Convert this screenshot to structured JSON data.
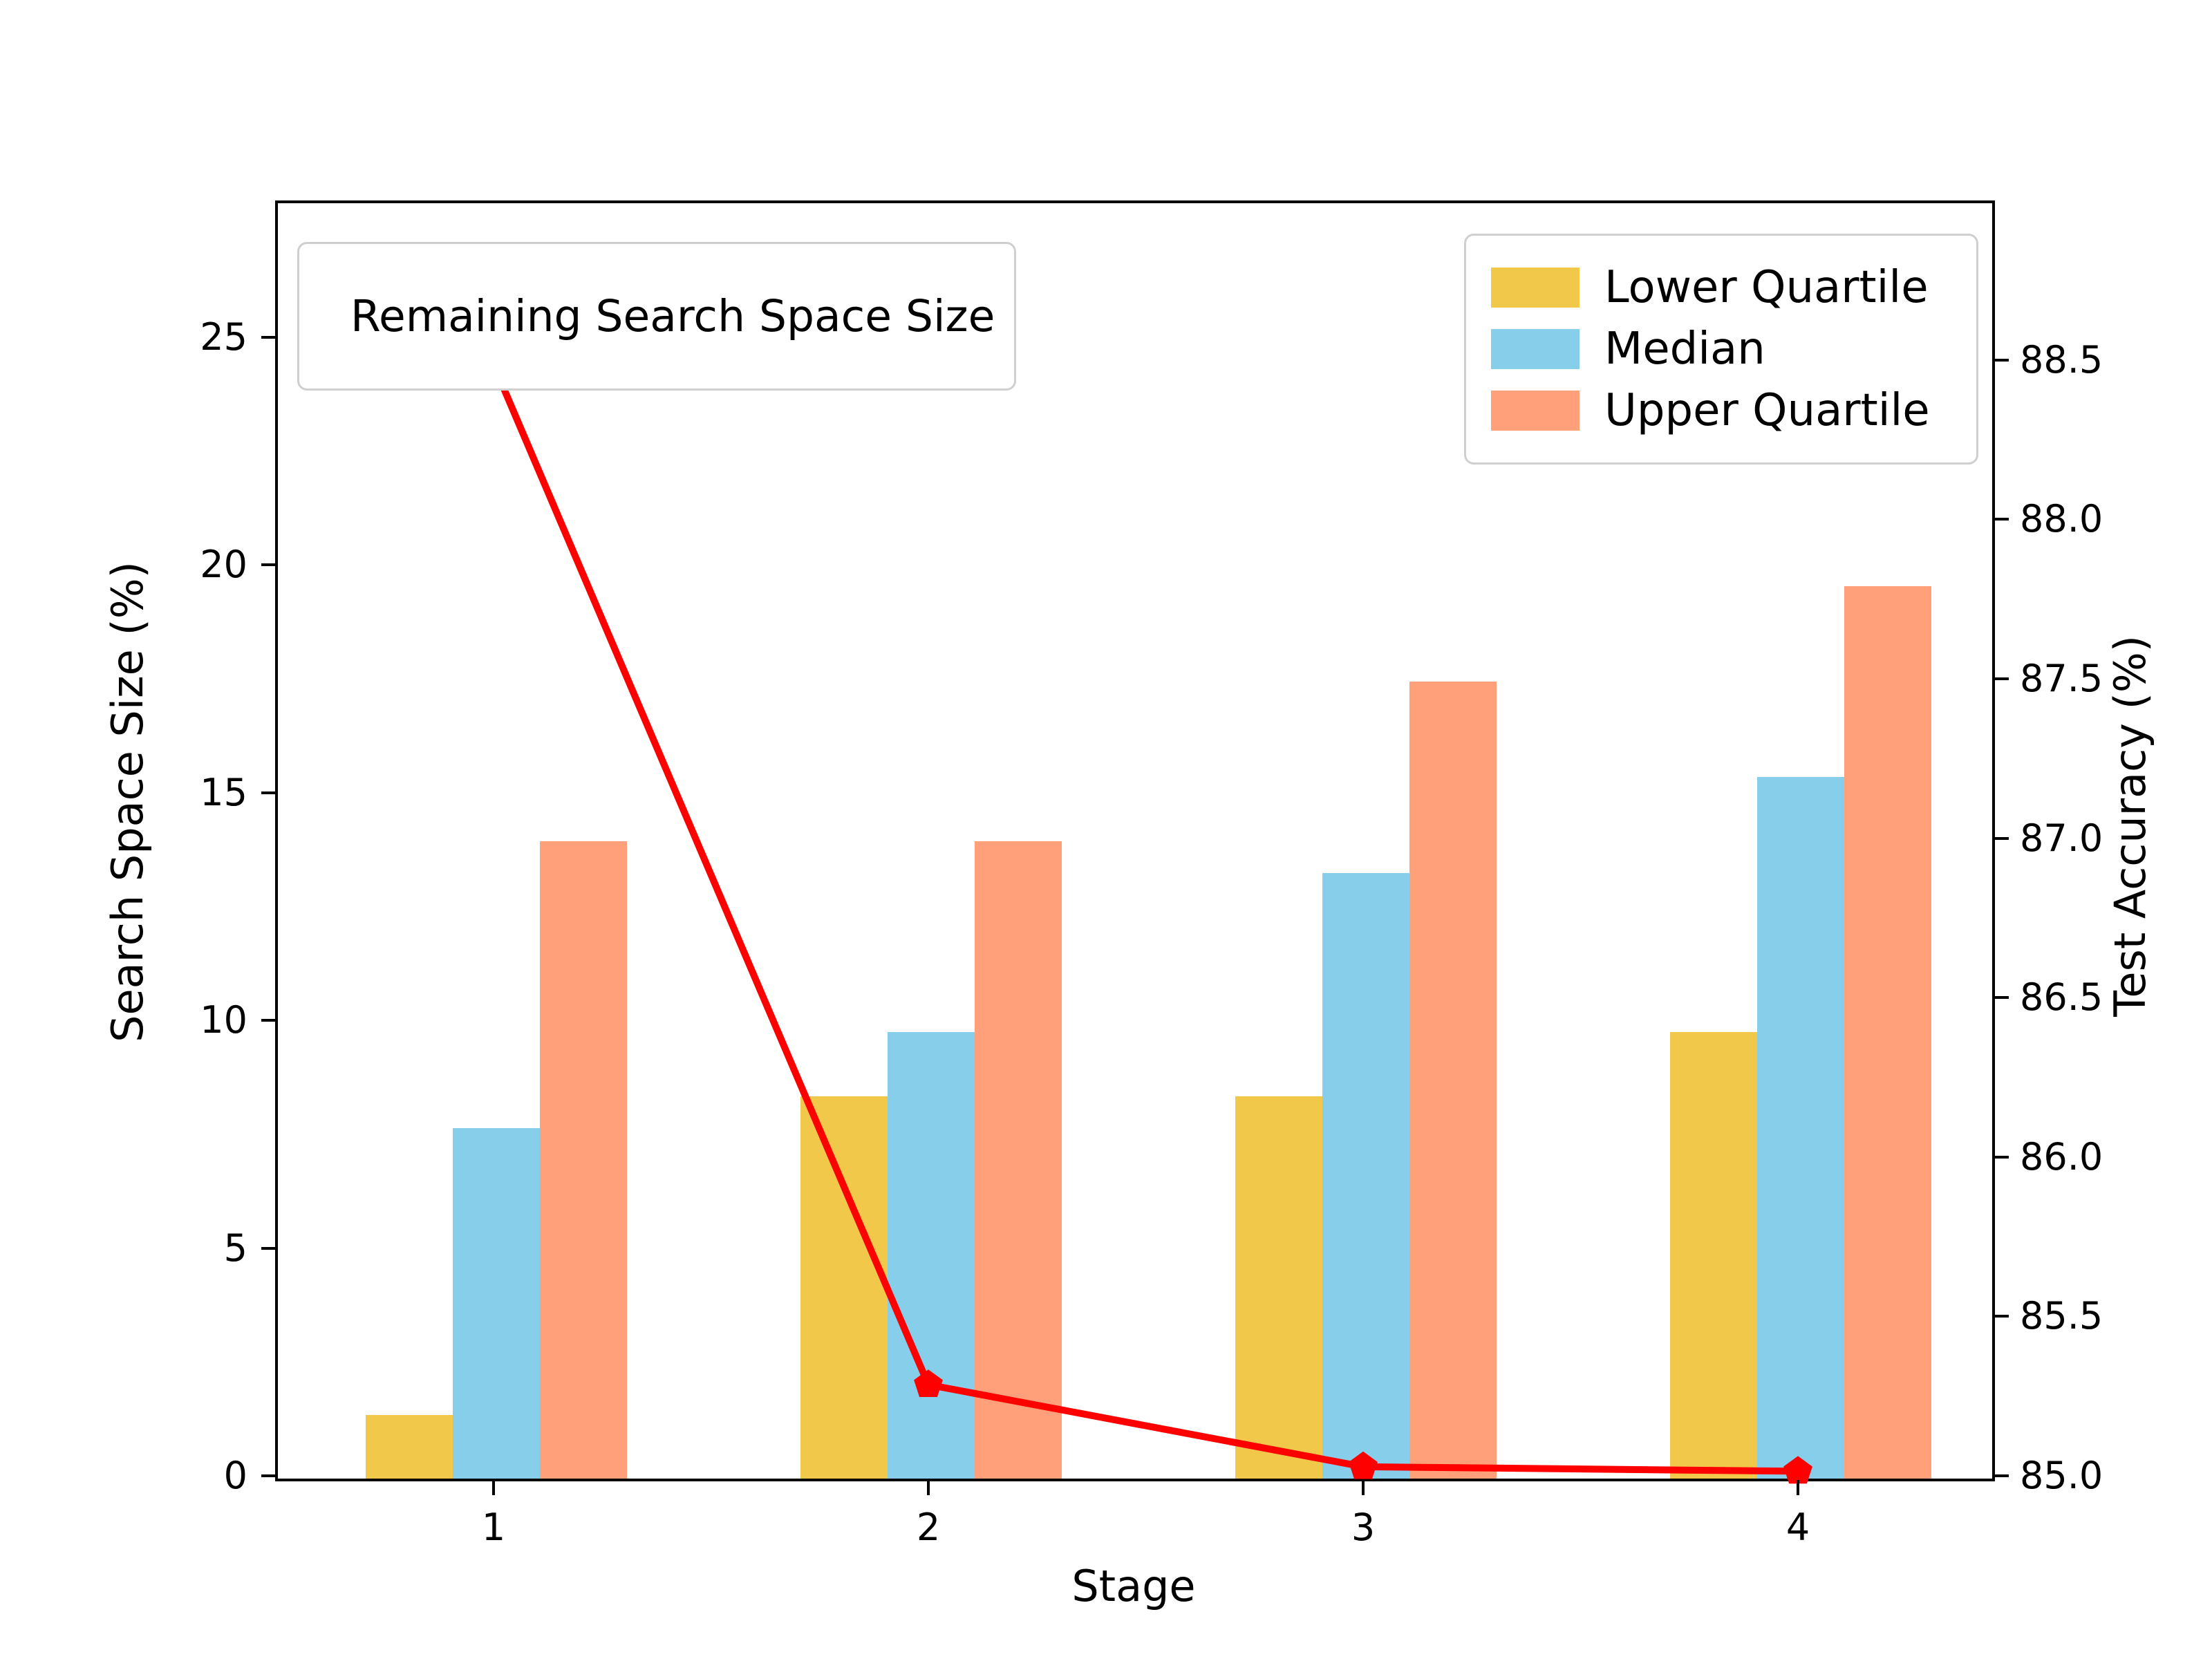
{
  "chart_data": {
    "type": "bar+line",
    "title": "",
    "xlabel": "Stage",
    "left_ylabel": "Search Space Size (%)",
    "right_ylabel": "Test Accuracy (%)",
    "categories": [
      "1",
      "2",
      "3",
      "4"
    ],
    "left_axis": {
      "range": [
        0,
        28
      ],
      "tick_values": [
        0,
        5,
        10,
        15,
        20,
        25
      ],
      "tick_labels": [
        "0",
        "5",
        "10",
        "15",
        "20",
        "25"
      ]
    },
    "right_axis": {
      "range": [
        85,
        89
      ],
      "tick_values": [
        85.0,
        85.5,
        86.0,
        86.5,
        87.0,
        87.5,
        88.0,
        88.5
      ],
      "tick_labels": [
        "85.0",
        "85.5",
        "86.0",
        "86.5",
        "87.0",
        "87.5",
        "88.0",
        "88.5"
      ]
    },
    "grid": false,
    "legend_positions": {
      "line": "upper left",
      "bars": "upper right"
    },
    "line_series": {
      "label": "Remaining Search Space Size",
      "axis": "left",
      "color": "#ff0000",
      "marker": "pentagon",
      "values": [
        24.4,
        2.0,
        0.2,
        0.1
      ]
    },
    "bar_series": [
      {
        "label": "Lower Quartile",
        "axis": "right",
        "color": "#f2c84b",
        "values": [
          85.2,
          86.2,
          86.2,
          86.4
        ]
      },
      {
        "label": "Median",
        "axis": "right",
        "color": "#87ceeb",
        "values": [
          86.1,
          86.4,
          86.9,
          87.2
        ]
      },
      {
        "label": "Upper Quartile",
        "axis": "right",
        "color": "#ffa07a",
        "values": [
          87.0,
          87.0,
          87.5,
          87.8
        ]
      }
    ]
  }
}
